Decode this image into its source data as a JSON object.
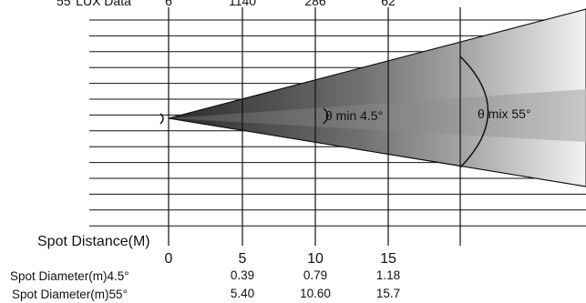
{
  "header": {
    "lux_label": "55°LUX Data",
    "lux_values": [
      "6",
      "1140",
      "286",
      "62"
    ]
  },
  "annotations": {
    "angle_min": "θ min 4.5°",
    "angle_max": "θ mix 55°"
  },
  "table": {
    "distance_label": "Spot Distance(M)",
    "distances": [
      "0",
      "5",
      "10",
      "15"
    ],
    "diameter_45_label": "Spot Diameter(m)4.5°",
    "diameter_45_values": [
      "0.39",
      "0.79",
      "1.18"
    ],
    "diameter_55_label": "Spot Diameter(m)55°",
    "diameter_55_values": [
      "5.40",
      "10.60",
      "15.7"
    ]
  },
  "colors": {
    "lines": "#111111",
    "beam_dark": "#3a3a3a",
    "beam_light": "#e2e2e2"
  }
}
